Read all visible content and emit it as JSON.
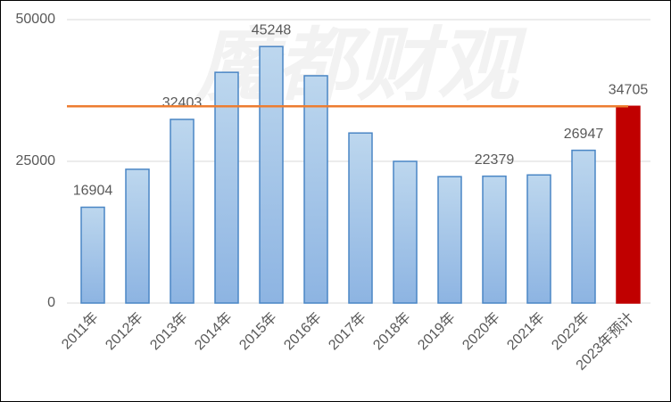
{
  "chart_data": {
    "type": "bar",
    "watermark": "魔都财观",
    "categories": [
      "2011年",
      "2012年",
      "2013年",
      "2014年",
      "2015年",
      "2016年",
      "2017年",
      "2018年",
      "2019年",
      "2020年",
      "2021年",
      "2022年",
      "2023年预计"
    ],
    "values": [
      16904,
      23600,
      32403,
      40700,
      45248,
      40100,
      30000,
      25000,
      22300,
      22379,
      22600,
      26947,
      34705
    ],
    "value_labels": [
      "16904",
      null,
      "32403",
      null,
      "45248",
      null,
      null,
      null,
      null,
      "22379",
      null,
      "26947",
      "34705"
    ],
    "colors": [
      "#9dc3e6",
      "#9dc3e6",
      "#9dc3e6",
      "#9dc3e6",
      "#9dc3e6",
      "#9dc3e6",
      "#9dc3e6",
      "#9dc3e6",
      "#9dc3e6",
      "#9dc3e6",
      "#9dc3e6",
      "#9dc3e6",
      "#c00000"
    ],
    "reference_line": {
      "value": 34705,
      "color": "#ed7d31"
    },
    "ylim": [
      0,
      50000
    ],
    "yticks": [
      0,
      25000,
      50000
    ],
    "grid": true
  }
}
